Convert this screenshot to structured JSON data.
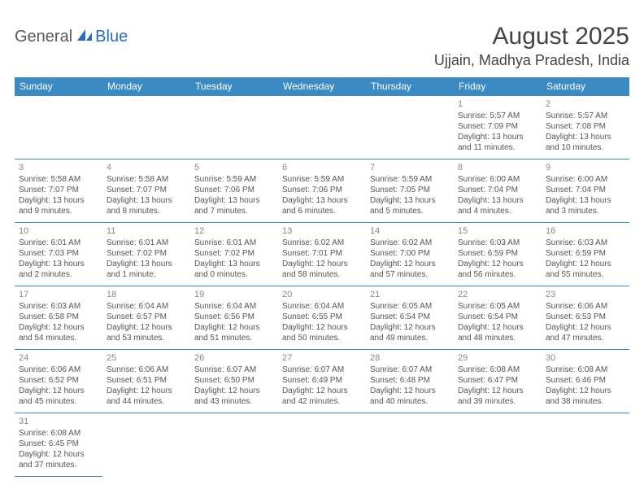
{
  "brand": {
    "word1": "General",
    "word2": "Blue"
  },
  "header": {
    "title": "August 2025",
    "location": "Ujjain, Madhya Pradesh, India"
  },
  "style": {
    "header_bg": "#3b8ac4",
    "header_fg": "#ffffff",
    "cell_border": "#3b8ac4",
    "daynum_color": "#888888",
    "text_color": "#555555",
    "title_color": "#444444",
    "logo_gray": "#5a5a5a",
    "logo_blue": "#2a6db8",
    "title_fontsize": 30,
    "location_fontsize": 18,
    "weekday_fontsize": 12,
    "cell_fontsize": 10
  },
  "weekdays": [
    "Sunday",
    "Monday",
    "Tuesday",
    "Wednesday",
    "Thursday",
    "Friday",
    "Saturday"
  ],
  "grid": [
    [
      null,
      null,
      null,
      null,
      null,
      {
        "n": "1",
        "sunrise": "Sunrise: 5:57 AM",
        "sunset": "Sunset: 7:09 PM",
        "daylight": "Daylight: 13 hours and 11 minutes."
      },
      {
        "n": "2",
        "sunrise": "Sunrise: 5:57 AM",
        "sunset": "Sunset: 7:08 PM",
        "daylight": "Daylight: 13 hours and 10 minutes."
      }
    ],
    [
      {
        "n": "3",
        "sunrise": "Sunrise: 5:58 AM",
        "sunset": "Sunset: 7:07 PM",
        "daylight": "Daylight: 13 hours and 9 minutes."
      },
      {
        "n": "4",
        "sunrise": "Sunrise: 5:58 AM",
        "sunset": "Sunset: 7:07 PM",
        "daylight": "Daylight: 13 hours and 8 minutes."
      },
      {
        "n": "5",
        "sunrise": "Sunrise: 5:59 AM",
        "sunset": "Sunset: 7:06 PM",
        "daylight": "Daylight: 13 hours and 7 minutes."
      },
      {
        "n": "6",
        "sunrise": "Sunrise: 5:59 AM",
        "sunset": "Sunset: 7:06 PM",
        "daylight": "Daylight: 13 hours and 6 minutes."
      },
      {
        "n": "7",
        "sunrise": "Sunrise: 5:59 AM",
        "sunset": "Sunset: 7:05 PM",
        "daylight": "Daylight: 13 hours and 5 minutes."
      },
      {
        "n": "8",
        "sunrise": "Sunrise: 6:00 AM",
        "sunset": "Sunset: 7:04 PM",
        "daylight": "Daylight: 13 hours and 4 minutes."
      },
      {
        "n": "9",
        "sunrise": "Sunrise: 6:00 AM",
        "sunset": "Sunset: 7:04 PM",
        "daylight": "Daylight: 13 hours and 3 minutes."
      }
    ],
    [
      {
        "n": "10",
        "sunrise": "Sunrise: 6:01 AM",
        "sunset": "Sunset: 7:03 PM",
        "daylight": "Daylight: 13 hours and 2 minutes."
      },
      {
        "n": "11",
        "sunrise": "Sunrise: 6:01 AM",
        "sunset": "Sunset: 7:02 PM",
        "daylight": "Daylight: 13 hours and 1 minute."
      },
      {
        "n": "12",
        "sunrise": "Sunrise: 6:01 AM",
        "sunset": "Sunset: 7:02 PM",
        "daylight": "Daylight: 13 hours and 0 minutes."
      },
      {
        "n": "13",
        "sunrise": "Sunrise: 6:02 AM",
        "sunset": "Sunset: 7:01 PM",
        "daylight": "Daylight: 12 hours and 58 minutes."
      },
      {
        "n": "14",
        "sunrise": "Sunrise: 6:02 AM",
        "sunset": "Sunset: 7:00 PM",
        "daylight": "Daylight: 12 hours and 57 minutes."
      },
      {
        "n": "15",
        "sunrise": "Sunrise: 6:03 AM",
        "sunset": "Sunset: 6:59 PM",
        "daylight": "Daylight: 12 hours and 56 minutes."
      },
      {
        "n": "16",
        "sunrise": "Sunrise: 6:03 AM",
        "sunset": "Sunset: 6:59 PM",
        "daylight": "Daylight: 12 hours and 55 minutes."
      }
    ],
    [
      {
        "n": "17",
        "sunrise": "Sunrise: 6:03 AM",
        "sunset": "Sunset: 6:58 PM",
        "daylight": "Daylight: 12 hours and 54 minutes."
      },
      {
        "n": "18",
        "sunrise": "Sunrise: 6:04 AM",
        "sunset": "Sunset: 6:57 PM",
        "daylight": "Daylight: 12 hours and 53 minutes."
      },
      {
        "n": "19",
        "sunrise": "Sunrise: 6:04 AM",
        "sunset": "Sunset: 6:56 PM",
        "daylight": "Daylight: 12 hours and 51 minutes."
      },
      {
        "n": "20",
        "sunrise": "Sunrise: 6:04 AM",
        "sunset": "Sunset: 6:55 PM",
        "daylight": "Daylight: 12 hours and 50 minutes."
      },
      {
        "n": "21",
        "sunrise": "Sunrise: 6:05 AM",
        "sunset": "Sunset: 6:54 PM",
        "daylight": "Daylight: 12 hours and 49 minutes."
      },
      {
        "n": "22",
        "sunrise": "Sunrise: 6:05 AM",
        "sunset": "Sunset: 6:54 PM",
        "daylight": "Daylight: 12 hours and 48 minutes."
      },
      {
        "n": "23",
        "sunrise": "Sunrise: 6:06 AM",
        "sunset": "Sunset: 6:53 PM",
        "daylight": "Daylight: 12 hours and 47 minutes."
      }
    ],
    [
      {
        "n": "24",
        "sunrise": "Sunrise: 6:06 AM",
        "sunset": "Sunset: 6:52 PM",
        "daylight": "Daylight: 12 hours and 45 minutes."
      },
      {
        "n": "25",
        "sunrise": "Sunrise: 6:06 AM",
        "sunset": "Sunset: 6:51 PM",
        "daylight": "Daylight: 12 hours and 44 minutes."
      },
      {
        "n": "26",
        "sunrise": "Sunrise: 6:07 AM",
        "sunset": "Sunset: 6:50 PM",
        "daylight": "Daylight: 12 hours and 43 minutes."
      },
      {
        "n": "27",
        "sunrise": "Sunrise: 6:07 AM",
        "sunset": "Sunset: 6:49 PM",
        "daylight": "Daylight: 12 hours and 42 minutes."
      },
      {
        "n": "28",
        "sunrise": "Sunrise: 6:07 AM",
        "sunset": "Sunset: 6:48 PM",
        "daylight": "Daylight: 12 hours and 40 minutes."
      },
      {
        "n": "29",
        "sunrise": "Sunrise: 6:08 AM",
        "sunset": "Sunset: 6:47 PM",
        "daylight": "Daylight: 12 hours and 39 minutes."
      },
      {
        "n": "30",
        "sunrise": "Sunrise: 6:08 AM",
        "sunset": "Sunset: 6:46 PM",
        "daylight": "Daylight: 12 hours and 38 minutes."
      }
    ],
    [
      {
        "n": "31",
        "sunrise": "Sunrise: 6:08 AM",
        "sunset": "Sunset: 6:45 PM",
        "daylight": "Daylight: 12 hours and 37 minutes."
      },
      null,
      null,
      null,
      null,
      null,
      null
    ]
  ]
}
